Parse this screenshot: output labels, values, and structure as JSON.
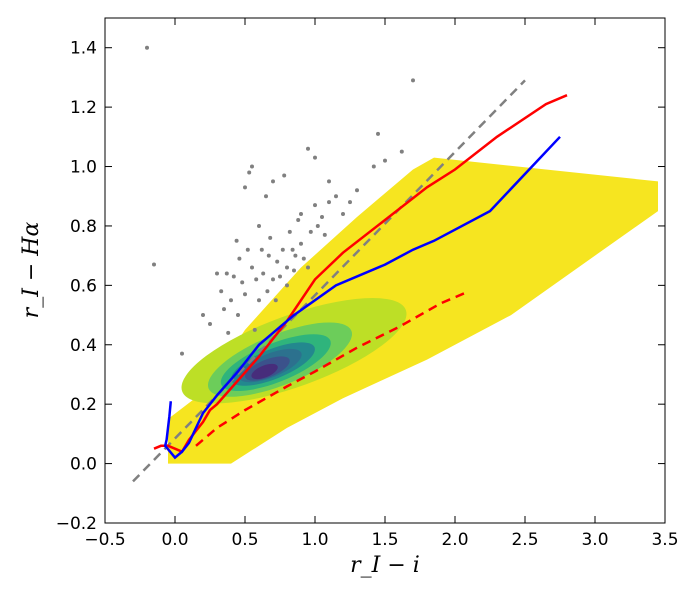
{
  "chart_data": {
    "type": "scatter",
    "title": "",
    "xlabel": "r_I − i",
    "ylabel": "r_I − Hα",
    "xlim": [
      -0.5,
      3.5
    ],
    "ylim": [
      -0.2,
      1.5
    ],
    "xticks": [
      -0.5,
      0.0,
      0.5,
      1.0,
      1.5,
      2.0,
      2.5,
      3.0,
      3.5
    ],
    "yticks": [
      -0.2,
      0.0,
      0.2,
      0.4,
      0.6,
      0.8,
      1.0,
      1.2,
      1.4
    ],
    "xtick_labels": [
      "−0.5",
      "0.0",
      "0.5",
      "1.0",
      "1.5",
      "2.0",
      "2.5",
      "3.0",
      "3.5"
    ],
    "ytick_labels": [
      "−0.2",
      "0.0",
      "0.2",
      "0.4",
      "0.6",
      "0.8",
      "1.0",
      "1.2",
      "1.4"
    ],
    "grid": false,
    "legend": false,
    "density": {
      "description": "filled density contours of the main stellar locus",
      "levels": [
        {
          "color": "#f6e520",
          "ridge": [
            [
              -0.2,
              0.08
            ],
            [
              0.3,
              0.17
            ],
            [
              0.6,
              0.32
            ],
            [
              1.0,
              0.45
            ],
            [
              1.5,
              0.58
            ],
            [
              2.0,
              0.66
            ],
            [
              2.5,
              0.77
            ],
            [
              3.0,
              0.85
            ],
            [
              3.45,
              0.95
            ]
          ],
          "upper": [
            [
              -0.05,
              0.15
            ],
            [
              0.2,
              0.24
            ],
            [
              0.5,
              0.45
            ],
            [
              0.9,
              0.66
            ],
            [
              1.3,
              0.83
            ],
            [
              1.7,
              0.99
            ],
            [
              1.85,
              1.03
            ]
          ],
          "lower": [
            [
              -0.05,
              0.0
            ],
            [
              0.4,
              0.0
            ],
            [
              0.8,
              0.12
            ],
            [
              1.2,
              0.22
            ],
            [
              1.8,
              0.35
            ],
            [
              2.4,
              0.5
            ],
            [
              3.0,
              0.7
            ],
            [
              3.45,
              0.85
            ]
          ]
        },
        {
          "color": "#bddf26",
          "center": [
            0.85,
            0.38
          ],
          "semi": [
            0.85,
            0.12
          ],
          "angle_deg": 20
        },
        {
          "color": "#6ccd5a",
          "center": [
            0.75,
            0.35
          ],
          "semi": [
            0.55,
            0.085
          ],
          "angle_deg": 22
        },
        {
          "color": "#2fb47c",
          "center": [
            0.72,
            0.34
          ],
          "semi": [
            0.42,
            0.065
          ],
          "angle_deg": 22
        },
        {
          "color": "#23888e",
          "center": [
            0.7,
            0.335
          ],
          "semi": [
            0.32,
            0.05
          ],
          "angle_deg": 22
        },
        {
          "color": "#2c718e",
          "center": [
            0.68,
            0.33
          ],
          "semi": [
            0.24,
            0.04
          ],
          "angle_deg": 22
        },
        {
          "color": "#3b528b",
          "center": [
            0.66,
            0.32
          ],
          "semi": [
            0.17,
            0.03
          ],
          "angle_deg": 22
        },
        {
          "color": "#472d7b",
          "center": [
            0.64,
            0.31
          ],
          "semi": [
            0.1,
            0.02
          ],
          "angle_deg": 22
        }
      ]
    },
    "scatter_points": {
      "color": "#808080",
      "points": [
        [
          -0.2,
          1.4
        ],
        [
          -0.15,
          0.67
        ],
        [
          0.05,
          0.37
        ],
        [
          0.2,
          0.5
        ],
        [
          0.25,
          0.47
        ],
        [
          0.3,
          0.64
        ],
        [
          0.33,
          0.58
        ],
        [
          0.35,
          0.52
        ],
        [
          0.37,
          0.64
        ],
        [
          0.38,
          0.44
        ],
        [
          0.4,
          0.55
        ],
        [
          0.42,
          0.63
        ],
        [
          0.44,
          0.75
        ],
        [
          0.45,
          0.5
        ],
        [
          0.46,
          0.69
        ],
        [
          0.48,
          0.61
        ],
        [
          0.5,
          0.57
        ],
        [
          0.5,
          0.93
        ],
        [
          0.52,
          0.72
        ],
        [
          0.53,
          0.98
        ],
        [
          0.55,
          0.66
        ],
        [
          0.55,
          1.0
        ],
        [
          0.57,
          0.45
        ],
        [
          0.58,
          0.62
        ],
        [
          0.6,
          0.55
        ],
        [
          0.6,
          0.8
        ],
        [
          0.62,
          0.72
        ],
        [
          0.63,
          0.64
        ],
        [
          0.65,
          0.9
        ],
        [
          0.66,
          0.58
        ],
        [
          0.67,
          0.7
        ],
        [
          0.68,
          0.76
        ],
        [
          0.7,
          0.62
        ],
        [
          0.7,
          0.95
        ],
        [
          0.72,
          0.55
        ],
        [
          0.73,
          0.68
        ],
        [
          0.75,
          0.63
        ],
        [
          0.77,
          0.72
        ],
        [
          0.78,
          0.97
        ],
        [
          0.8,
          0.6
        ],
        [
          0.8,
          0.66
        ],
        [
          0.82,
          0.78
        ],
        [
          0.84,
          0.72
        ],
        [
          0.85,
          0.65
        ],
        [
          0.86,
          0.7
        ],
        [
          0.88,
          0.82
        ],
        [
          0.9,
          0.74
        ],
        [
          0.9,
          0.84
        ],
        [
          0.92,
          0.69
        ],
        [
          0.95,
          0.66
        ],
        [
          0.95,
          1.06
        ],
        [
          0.97,
          0.78
        ],
        [
          1.0,
          0.87
        ],
        [
          1.0,
          1.03
        ],
        [
          1.02,
          0.8
        ],
        [
          1.05,
          0.83
        ],
        [
          1.07,
          0.77
        ],
        [
          1.1,
          0.95
        ],
        [
          1.1,
          0.88
        ],
        [
          1.15,
          0.9
        ],
        [
          1.2,
          0.84
        ],
        [
          1.25,
          0.88
        ],
        [
          1.3,
          0.92
        ],
        [
          1.42,
          1.0
        ],
        [
          1.45,
          1.11
        ],
        [
          1.5,
          1.02
        ],
        [
          1.62,
          1.05
        ],
        [
          1.7,
          1.29
        ]
      ]
    },
    "series": [
      {
        "color": "#808080",
        "style": "dashed",
        "x": [
          -0.3,
          2.5
        ],
        "y": [
          -0.06,
          1.29
        ]
      },
      {
        "color": "#ff0000",
        "style": "solid",
        "x": [
          -0.15,
          -0.1,
          -0.05,
          0.0,
          0.05,
          0.1,
          0.15,
          0.2,
          0.25,
          0.3,
          0.45,
          0.6,
          0.8,
          1.0,
          1.2,
          1.5,
          1.8,
          2.0,
          2.3,
          2.65,
          2.8
        ],
        "y": [
          0.05,
          0.06,
          0.06,
          0.05,
          0.04,
          0.08,
          0.11,
          0.14,
          0.18,
          0.2,
          0.28,
          0.36,
          0.48,
          0.62,
          0.71,
          0.82,
          0.93,
          0.99,
          1.1,
          1.21,
          1.24
        ]
      },
      {
        "color": "#0000ff",
        "style": "solid",
        "x": [
          -0.03,
          -0.04,
          -0.05,
          -0.06,
          -0.07,
          0.0,
          0.05,
          0.1,
          0.15,
          0.2,
          0.3,
          0.45,
          0.6,
          0.85,
          1.15,
          1.5,
          1.7,
          1.85,
          2.25,
          2.75
        ],
        "y": [
          0.21,
          0.16,
          0.12,
          0.08,
          0.06,
          0.02,
          0.04,
          0.07,
          0.12,
          0.17,
          0.23,
          0.31,
          0.4,
          0.5,
          0.6,
          0.67,
          0.72,
          0.75,
          0.85,
          1.1
        ]
      },
      {
        "color": "#ff0000",
        "style": "dashed",
        "x": [
          0.15,
          0.3,
          0.5,
          0.8,
          1.0,
          1.3,
          1.6,
          1.9,
          2.1
        ],
        "y": [
          0.06,
          0.12,
          0.18,
          0.26,
          0.31,
          0.39,
          0.46,
          0.54,
          0.58
        ]
      }
    ]
  }
}
